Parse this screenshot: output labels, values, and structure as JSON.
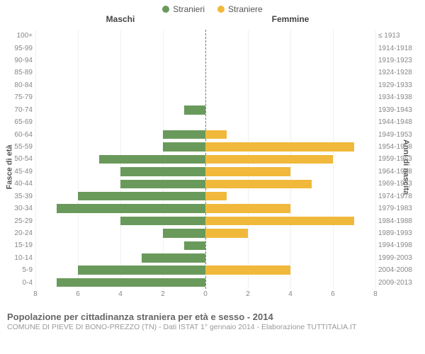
{
  "legend": {
    "male": {
      "label": "Stranieri",
      "color": "#6a9a5b"
    },
    "female": {
      "label": "Straniere",
      "color": "#f0b93b"
    }
  },
  "column_headers": {
    "left": "Maschi",
    "right": "Femmine"
  },
  "axis_labels": {
    "left": "Fasce di età",
    "right": "Anni di nascita"
  },
  "chart": {
    "type": "population-pyramid",
    "xmax": 8,
    "xticks_left": [
      8,
      6,
      4,
      2,
      0
    ],
    "xticks_right": [
      0,
      2,
      4,
      6,
      8
    ],
    "grid_color": "#f0f0f0",
    "center_line_color": "#777777",
    "background": "#ffffff",
    "male_color": "#6a9a5b",
    "female_color": "#f0b93b",
    "rows": [
      {
        "age": "100+",
        "birth": "≤ 1913",
        "m": 0,
        "f": 0
      },
      {
        "age": "95-99",
        "birth": "1914-1918",
        "m": 0,
        "f": 0
      },
      {
        "age": "90-94",
        "birth": "1919-1923",
        "m": 0,
        "f": 0
      },
      {
        "age": "85-89",
        "birth": "1924-1928",
        "m": 0,
        "f": 0
      },
      {
        "age": "80-84",
        "birth": "1929-1933",
        "m": 0,
        "f": 0
      },
      {
        "age": "75-79",
        "birth": "1934-1938",
        "m": 0,
        "f": 0
      },
      {
        "age": "70-74",
        "birth": "1939-1943",
        "m": 1,
        "f": 0
      },
      {
        "age": "65-69",
        "birth": "1944-1948",
        "m": 0,
        "f": 0
      },
      {
        "age": "60-64",
        "birth": "1949-1953",
        "m": 2,
        "f": 1
      },
      {
        "age": "55-59",
        "birth": "1954-1958",
        "m": 2,
        "f": 7
      },
      {
        "age": "50-54",
        "birth": "1959-1963",
        "m": 5,
        "f": 6
      },
      {
        "age": "45-49",
        "birth": "1964-1968",
        "m": 4,
        "f": 4
      },
      {
        "age": "40-44",
        "birth": "1969-1973",
        "m": 4,
        "f": 5
      },
      {
        "age": "35-39",
        "birth": "1974-1978",
        "m": 6,
        "f": 1
      },
      {
        "age": "30-34",
        "birth": "1979-1983",
        "m": 7,
        "f": 4
      },
      {
        "age": "25-29",
        "birth": "1984-1988",
        "m": 4,
        "f": 7
      },
      {
        "age": "20-24",
        "birth": "1989-1993",
        "m": 2,
        "f": 2
      },
      {
        "age": "15-19",
        "birth": "1994-1998",
        "m": 1,
        "f": 0
      },
      {
        "age": "10-14",
        "birth": "1999-2003",
        "m": 3,
        "f": 0
      },
      {
        "age": "5-9",
        "birth": "2004-2008",
        "m": 6,
        "f": 4
      },
      {
        "age": "0-4",
        "birth": "2009-2013",
        "m": 7,
        "f": 0
      }
    ]
  },
  "footer": {
    "line1": "Popolazione per cittadinanza straniera per età e sesso - 2014",
    "line2": "COMUNE DI PIEVE DI BONO-PREZZO (TN) - Dati ISTAT 1° gennaio 2014 - Elaborazione TUTTITALIA.IT"
  }
}
